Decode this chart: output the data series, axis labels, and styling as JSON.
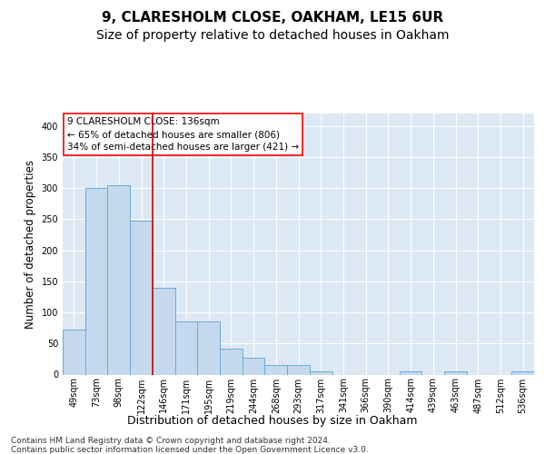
{
  "title1": "9, CLARESHOLM CLOSE, OAKHAM, LE15 6UR",
  "title2": "Size of property relative to detached houses in Oakham",
  "xlabel": "Distribution of detached houses by size in Oakham",
  "ylabel": "Number of detached properties",
  "categories": [
    "49sqm",
    "73sqm",
    "98sqm",
    "122sqm",
    "146sqm",
    "171sqm",
    "195sqm",
    "219sqm",
    "244sqm",
    "268sqm",
    "293sqm",
    "317sqm",
    "341sqm",
    "366sqm",
    "390sqm",
    "414sqm",
    "439sqm",
    "463sqm",
    "487sqm",
    "512sqm",
    "536sqm"
  ],
  "values": [
    73,
    300,
    305,
    248,
    140,
    85,
    85,
    42,
    27,
    15,
    15,
    5,
    0,
    0,
    0,
    5,
    0,
    5,
    0,
    0,
    5
  ],
  "bar_color": "#c5d9ee",
  "bar_edge_color": "#6aaad4",
  "vline_color": "#cc0000",
  "vline_position": 3.5,
  "annotation_line1": "9 CLARESHOLM CLOSE: 136sqm",
  "annotation_line2": "← 65% of detached houses are smaller (806)",
  "annotation_line3": "34% of semi-detached houses are larger (421) →",
  "annotation_box_facecolor": "white",
  "annotation_box_edgecolor": "red",
  "ylim_max": 420,
  "yticks": [
    0,
    50,
    100,
    150,
    200,
    250,
    300,
    350,
    400
  ],
  "footer1": "Contains HM Land Registry data © Crown copyright and database right 2024.",
  "footer2": "Contains public sector information licensed under the Open Government Licence v3.0.",
  "plot_bg_color": "#dce9f5",
  "grid_color": "white",
  "title1_fontsize": 11,
  "title2_fontsize": 10,
  "ylabel_fontsize": 8.5,
  "tick_fontsize": 7,
  "annotation_fontsize": 7.5,
  "footer_fontsize": 6.5
}
